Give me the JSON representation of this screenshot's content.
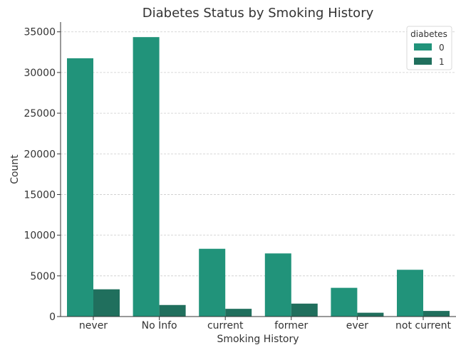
{
  "chart_data": {
    "type": "bar",
    "title": "Diabetes Status by Smoking History",
    "xlabel": "Smoking History",
    "ylabel": "Count",
    "categories": [
      "never",
      "No Info",
      "current",
      "former",
      "ever",
      "not current"
    ],
    "series": [
      {
        "name": "0",
        "color": "#21937a",
        "values": [
          31750,
          34350,
          8330,
          7760,
          3530,
          5750
        ]
      },
      {
        "name": "1",
        "color": "#206f5d",
        "values": [
          3350,
          1420,
          950,
          1590,
          470,
          690
        ]
      }
    ],
    "yticks": [
      0,
      5000,
      10000,
      15000,
      20000,
      25000,
      30000,
      35000
    ],
    "ylim": [
      0,
      36200
    ],
    "grid": true,
    "legend": {
      "title": "diabetes",
      "placement": "top-right"
    }
  }
}
